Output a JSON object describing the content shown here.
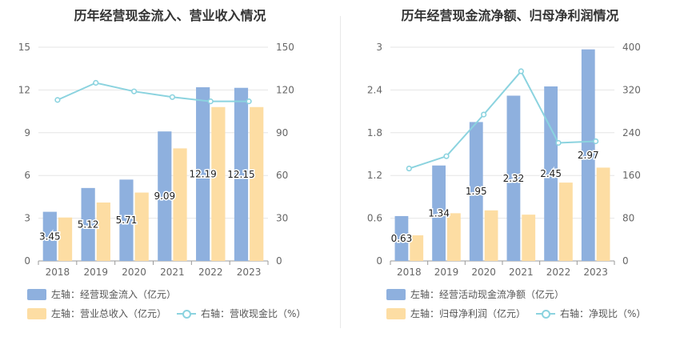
{
  "colors": {
    "blue": "#8eb0de",
    "orange": "#fddda3",
    "line": "#8bd3df",
    "grid": "#e6e6e6",
    "axis": "#666666"
  },
  "left": {
    "title": "历年经营现金流入、营业收入情况",
    "legend": {
      "bar1": "左轴：经营现金流入（亿元）",
      "bar2": "左轴：营业总收入（亿元）",
      "line": "右轴：营收现金比（%）"
    }
  },
  "right": {
    "title": "历年经营现金流净额、归母净利润情况",
    "legend": {
      "bar1": "左轴：经营活动现金流净额（亿元）",
      "bar2": "左轴：归母净利润（亿元）",
      "line": "右轴：净现比（%）"
    }
  },
  "chart_data": [
    {
      "type": "bar",
      "title": "历年经营现金流入、营业收入情况",
      "categories": [
        "2018",
        "2019",
        "2020",
        "2021",
        "2022",
        "2023"
      ],
      "left_axis": {
        "ylim": [
          0,
          15
        ],
        "ticks": [
          "0",
          "3",
          "6",
          "9",
          "12",
          "15"
        ]
      },
      "right_axis": {
        "ylim": [
          0,
          150
        ],
        "ticks": [
          "0",
          "30",
          "60",
          "90",
          "120",
          "150"
        ]
      },
      "series": [
        {
          "name": "左轴：经营现金流入（亿元）",
          "axis": "left",
          "kind": "bar",
          "color": "#8eb0de",
          "values": [
            3.45,
            5.12,
            5.71,
            9.09,
            12.19,
            12.15
          ],
          "labels": [
            "3.45",
            "5.12",
            "5.71",
            "9.09",
            "12.19",
            "12.15"
          ]
        },
        {
          "name": "左轴：营业总收入（亿元）",
          "axis": "left",
          "kind": "bar",
          "color": "#fddda3",
          "values": [
            3.05,
            4.1,
            4.8,
            7.9,
            10.8,
            10.8
          ]
        },
        {
          "name": "右轴：营收现金比（%）",
          "axis": "right",
          "kind": "line",
          "color": "#8bd3df",
          "values": [
            113,
            125,
            119,
            115,
            112,
            112
          ]
        }
      ]
    },
    {
      "type": "bar",
      "title": "历年经营现金流净额、归母净利润情况",
      "categories": [
        "2018",
        "2019",
        "2020",
        "2021",
        "2022",
        "2023"
      ],
      "left_axis": {
        "ylim": [
          0,
          3
        ],
        "ticks": [
          "0",
          "0.6",
          "1.2",
          "1.8",
          "2.4",
          "3"
        ]
      },
      "right_axis": {
        "ylim": [
          0,
          400
        ],
        "ticks": [
          "0",
          "80",
          "160",
          "240",
          "320",
          "400"
        ]
      },
      "series": [
        {
          "name": "左轴：经营活动现金流净额（亿元）",
          "axis": "left",
          "kind": "bar",
          "color": "#8eb0de",
          "values": [
            0.63,
            1.34,
            1.95,
            2.32,
            2.45,
            2.97
          ],
          "labels": [
            "0.63",
            "1.34",
            "1.95",
            "2.32",
            "2.45",
            "2.97"
          ]
        },
        {
          "name": "左轴：归母净利润（亿元）",
          "axis": "left",
          "kind": "bar",
          "color": "#fddda3",
          "values": [
            0.36,
            0.67,
            0.71,
            0.65,
            1.1,
            1.31
          ]
        },
        {
          "name": "右轴：净现比（%）",
          "axis": "right",
          "kind": "line",
          "color": "#8bd3df",
          "values": [
            173,
            196,
            274,
            355,
            221,
            224
          ]
        }
      ]
    }
  ]
}
